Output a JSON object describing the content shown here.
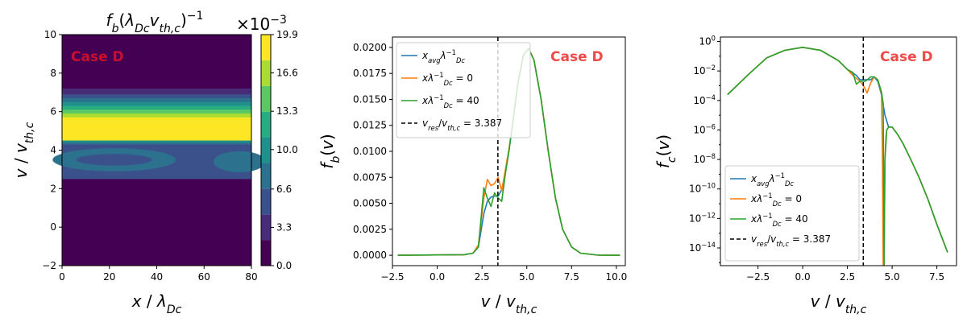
{
  "chart_data": [
    {
      "id": "contour",
      "type": "heatmap",
      "title": "f_b(λ_Dc v_th,c)^-1",
      "xlabel": "x / λ_Dc",
      "ylabel": "v / v_th,c",
      "xlim": [
        0,
        80
      ],
      "ylim": [
        -2,
        10
      ],
      "xticks": [
        "0",
        "20",
        "40",
        "60",
        "80"
      ],
      "yticks": [
        "−2",
        "0",
        "2",
        "4",
        "6",
        "8",
        "10"
      ],
      "annotation": "Case D",
      "colorbar": {
        "multiplier": "×10",
        "multiplier_exp": "−3",
        "levels": [
          0.0,
          3.3,
          6.6,
          10.0,
          13.3,
          16.6,
          19.9
        ],
        "tick_labels": [
          "0.0",
          "3.3",
          "6.6",
          "10.0",
          "13.3",
          "16.6",
          "19.9"
        ],
        "colors": [
          "#440154",
          "#472c7a",
          "#3b518b",
          "#2c718e",
          "#21908d",
          "#27ad81",
          "#5cc863",
          "#aadc32",
          "#fde725"
        ]
      },
      "grid": false
    },
    {
      "id": "fb",
      "type": "line",
      "xlabel": "v / v_th,c",
      "ylabel": "f_b(v)",
      "xlim": [
        -2.5,
        10.5
      ],
      "ylim": [
        -0.001,
        0.021
      ],
      "xticks": [
        "−2.5",
        "0.0",
        "2.5",
        "5.0",
        "7.5",
        "10.0"
      ],
      "yticks": [
        "0.0000",
        "0.0025",
        "0.0050",
        "0.0075",
        "0.0100",
        "0.0125",
        "0.0150",
        "0.0175",
        "0.0200"
      ],
      "vline": 3.387,
      "annotation": "Case D",
      "legend_position": "top-left",
      "legend": [
        "x_avg λ_Dc^-1",
        "x λ_Dc^-1 = 0",
        "x λ_Dc^-1 = 40",
        "v_res / v_th,c = 3.387"
      ],
      "series": [
        {
          "name": "x_avg λ_Dc^-1",
          "color": "#1f77b4",
          "x": [
            -2.2,
            1.5,
            2.0,
            2.3,
            2.6,
            2.8,
            3.0,
            3.2,
            3.4,
            3.6,
            3.8,
            4.0,
            4.2,
            4.5,
            4.8,
            5.1,
            5.4,
            5.8,
            6.2,
            6.6,
            7.0,
            7.5,
            8.0,
            9.0,
            10.2
          ],
          "y": [
            0,
            5e-05,
            0.0002,
            0.0008,
            0.004,
            0.0052,
            0.0056,
            0.0057,
            0.0057,
            0.0063,
            0.008,
            0.01,
            0.0125,
            0.0165,
            0.0192,
            0.0199,
            0.0188,
            0.015,
            0.01,
            0.0055,
            0.0025,
            0.0008,
            0.0002,
            1e-05,
            0
          ]
        },
        {
          "name": "x λ_Dc^-1 = 0",
          "color": "#ff7f0e",
          "x": [
            -2.2,
            1.5,
            2.0,
            2.3,
            2.6,
            2.8,
            3.0,
            3.2,
            3.4,
            3.6,
            3.8,
            4.0,
            4.2,
            4.5,
            4.8,
            5.1,
            5.4,
            5.8,
            6.2,
            6.6,
            7.0,
            7.5,
            8.0,
            9.0,
            10.2
          ],
          "y": [
            0,
            5e-05,
            0.0002,
            0.001,
            0.0055,
            0.0073,
            0.0067,
            0.0069,
            0.0075,
            0.0062,
            0.0082,
            0.0102,
            0.0125,
            0.0165,
            0.0192,
            0.0199,
            0.0188,
            0.015,
            0.01,
            0.0055,
            0.0025,
            0.0008,
            0.0002,
            1e-05,
            0
          ]
        },
        {
          "name": "x λ_Dc^-1 = 40",
          "color": "#2ca02c",
          "x": [
            -2.2,
            1.5,
            2.0,
            2.3,
            2.6,
            2.8,
            3.0,
            3.2,
            3.4,
            3.6,
            3.8,
            4.0,
            4.2,
            4.5,
            4.8,
            5.1,
            5.4,
            5.8,
            6.2,
            6.6,
            7.0,
            7.5,
            8.0,
            9.0,
            10.2
          ],
          "y": [
            0,
            5e-05,
            0.0002,
            0.0008,
            0.0065,
            0.0055,
            0.0047,
            0.006,
            0.0055,
            0.0052,
            0.0078,
            0.01,
            0.0125,
            0.0165,
            0.0192,
            0.0199,
            0.0188,
            0.015,
            0.01,
            0.0055,
            0.0025,
            0.0008,
            0.0002,
            1e-05,
            0
          ]
        }
      ]
    },
    {
      "id": "fc",
      "type": "line",
      "xlabel": "v / v_th,c",
      "ylabel": "f_c(v)",
      "yscale": "log",
      "xlim": [
        -4.6,
        8.6
      ],
      "ylim_log10": [
        -15.2,
        0.3
      ],
      "xticks": [
        "−2.5",
        "0.0",
        "2.5",
        "5.0",
        "7.5"
      ],
      "ytick_exponents": [
        0,
        -2,
        -4,
        -6,
        -8,
        -10,
        -12,
        -14
      ],
      "vline": 3.387,
      "annotation": "Case D",
      "legend_position": "bottom-left",
      "legend": [
        "x_avg λ_Dc^-1",
        "x λ_Dc^-1 = 0",
        "x λ_Dc^-1 = 40",
        "v_res / v_th,c = 3.387"
      ],
      "series": [
        {
          "name": "x_avg λ_Dc^-1",
          "color": "#1f77b4",
          "x": [
            -4.2,
            -3,
            -2,
            -1,
            0,
            1,
            2,
            2.5,
            3.0,
            3.2,
            3.5,
            3.8,
            4.0,
            4.2,
            4.4,
            4.6,
            4.8,
            5.0,
            5.3,
            5.6,
            6.0,
            6.5,
            7.0,
            7.5,
            8.1
          ],
          "log10y": [
            -3.6,
            -2.2,
            -1.1,
            -0.6,
            -0.4,
            -0.6,
            -1.3,
            -1.9,
            -2.3,
            -2.6,
            -2.6,
            -2.6,
            -2.4,
            -2.7,
            -3.6,
            -5.0,
            -5.8,
            -5.8,
            -6.3,
            -6.9,
            -7.9,
            -9.2,
            -10.7,
            -12.4,
            -14.3
          ]
        },
        {
          "name": "x λ_Dc^-1 = 0",
          "color": "#ff7f0e",
          "x": [
            -4.2,
            -3,
            -2,
            -1,
            0,
            1,
            2,
            2.5,
            2.8,
            3.0,
            3.2,
            3.4,
            3.6,
            3.8,
            4.0,
            4.2,
            4.4,
            4.45,
            4.5,
            4.55,
            4.6,
            4.65,
            4.7,
            4.8,
            5.0,
            5.3,
            5.6,
            6.0,
            6.5,
            7.0,
            7.5,
            8.1
          ],
          "log10y": [
            -3.6,
            -2.2,
            -1.1,
            -0.6,
            -0.4,
            -0.6,
            -1.3,
            -1.9,
            -2.3,
            -2.5,
            -2.7,
            -3.0,
            -3.5,
            -2.8,
            -2.4,
            -2.6,
            -3.5,
            -7.0,
            -15.2,
            -15.2,
            -8.0,
            -6.5,
            -6.0,
            -5.8,
            -5.8,
            -6.3,
            -6.9,
            -7.9,
            -9.2,
            -10.7,
            -12.4,
            -14.3
          ]
        },
        {
          "name": "x λ_Dc^-1 = 40",
          "color": "#2ca02c",
          "x": [
            -4.2,
            -3,
            -2,
            -1,
            0,
            1,
            2,
            2.5,
            2.8,
            3.0,
            3.2,
            3.5,
            3.8,
            4.0,
            4.2,
            4.4,
            4.5,
            4.55,
            4.6,
            4.7,
            4.8,
            5.0,
            5.3,
            5.6,
            6.0,
            6.5,
            7.0,
            7.5,
            8.1
          ],
          "log10y": [
            -3.6,
            -2.2,
            -1.1,
            -0.6,
            -0.4,
            -0.6,
            -1.3,
            -1.9,
            -2.1,
            -2.9,
            -2.7,
            -2.7,
            -2.4,
            -2.4,
            -2.6,
            -3.4,
            -4.2,
            -15.2,
            -8.0,
            -6.0,
            -5.8,
            -5.8,
            -6.3,
            -6.9,
            -7.9,
            -9.2,
            -10.7,
            -12.4,
            -14.3
          ]
        }
      ]
    }
  ]
}
